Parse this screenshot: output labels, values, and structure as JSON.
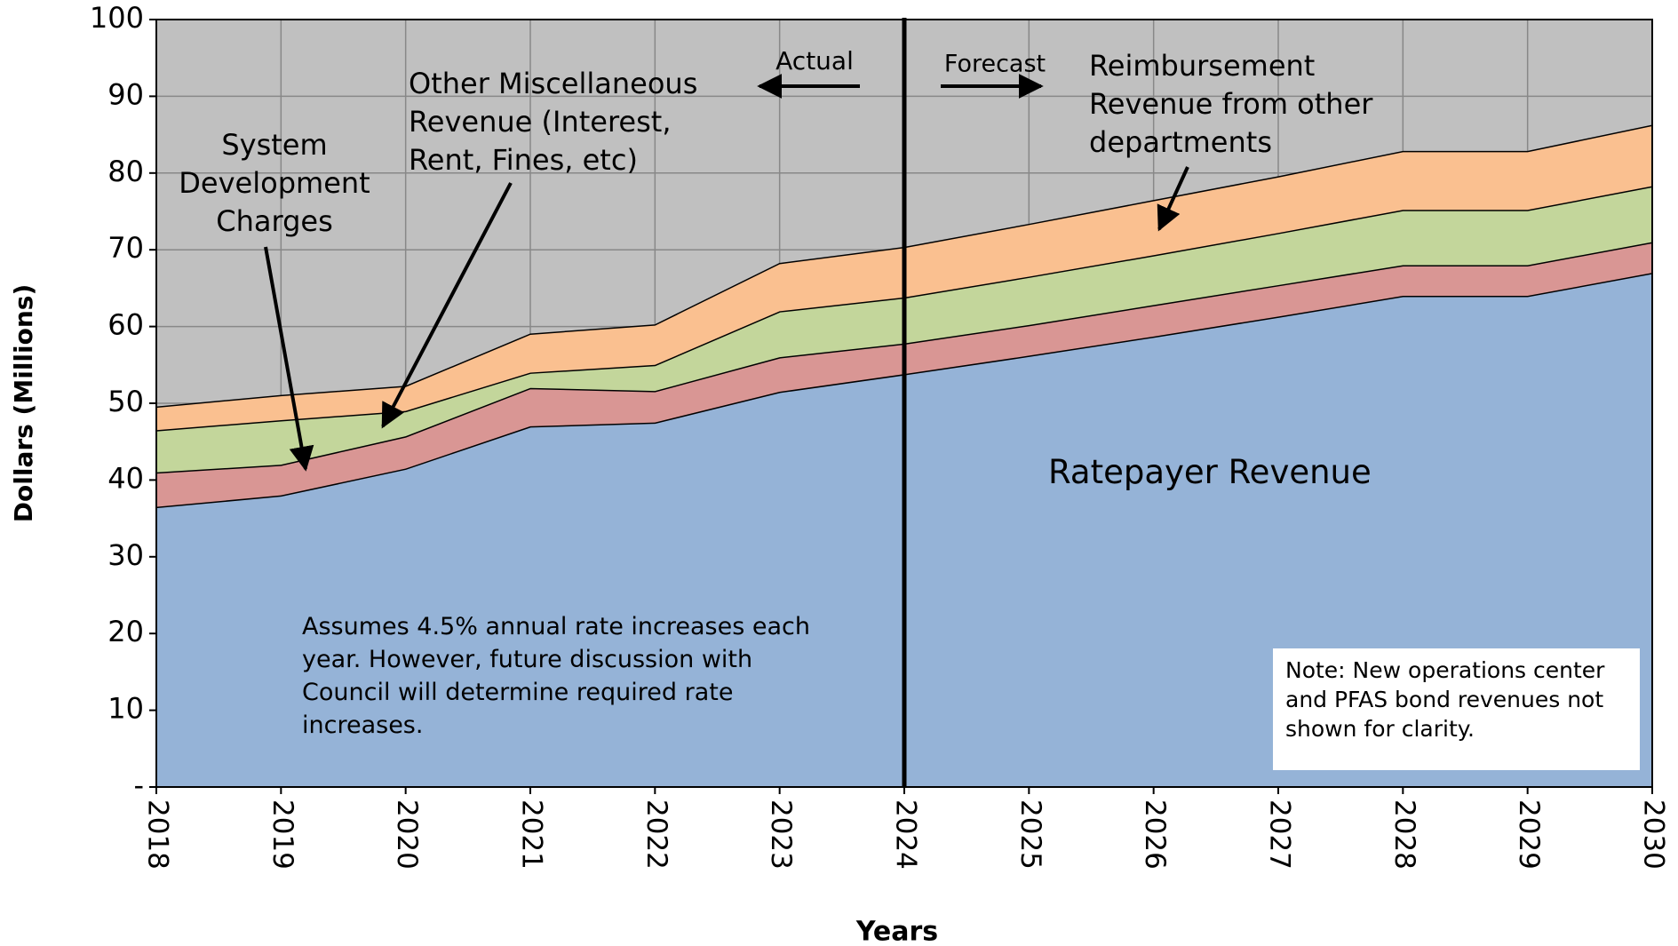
{
  "chart_data": {
    "type": "stacked_area",
    "x_label": "Years",
    "y_label": "Dollars (Millions)",
    "categories": [
      "2018",
      "2019",
      "2020",
      "2021",
      "2022",
      "2023",
      "2024",
      "2025",
      "2026",
      "2027",
      "2028",
      "2029",
      "2030"
    ],
    "series": [
      {
        "name": "Ratepayer Revenue",
        "color": "#95b3d7",
        "values": [
          36.5,
          38,
          41.5,
          47,
          47.5,
          51.5,
          53.8,
          56.2,
          58.7,
          61.3,
          64,
          64,
          67
        ]
      },
      {
        "name": "System Development Charges",
        "color": "#d99694",
        "values": [
          4.5,
          4,
          4.2,
          5,
          4.1,
          4.5,
          4,
          4,
          4.1,
          4.1,
          4,
          4,
          4
        ]
      },
      {
        "name": "Other Miscellaneous Revenue (Interest, Rent, Fines, etc)",
        "color": "#c3d69b",
        "values": [
          5.5,
          5.8,
          3.3,
          2,
          3.4,
          6,
          6,
          6.3,
          6.5,
          6.8,
          7.2,
          7.2,
          7.3
        ]
      },
      {
        "name": "Reimbursement Revenue from other departments",
        "color": "#fac090",
        "values": [
          3,
          3.2,
          3.2,
          5,
          5.2,
          6.2,
          6.5,
          6.8,
          7.1,
          7.3,
          7.6,
          7.6,
          7.9
        ]
      }
    ],
    "ylim": [
      0,
      100
    ],
    "yticks": [
      {
        "value": 0,
        "label": "-"
      },
      10,
      20,
      30,
      40,
      50,
      60,
      70,
      80,
      90,
      100
    ],
    "grid": true,
    "divider_at": "2024",
    "annotations": {
      "actual": "Actual",
      "forecast": "Forecast",
      "assumption": "Assumes 4.5% annual rate increases each year. However, future discussion with Council will determine required rate increases.",
      "note": "Note: New operations center and PFAS bond revenues not shown for clarity."
    }
  }
}
